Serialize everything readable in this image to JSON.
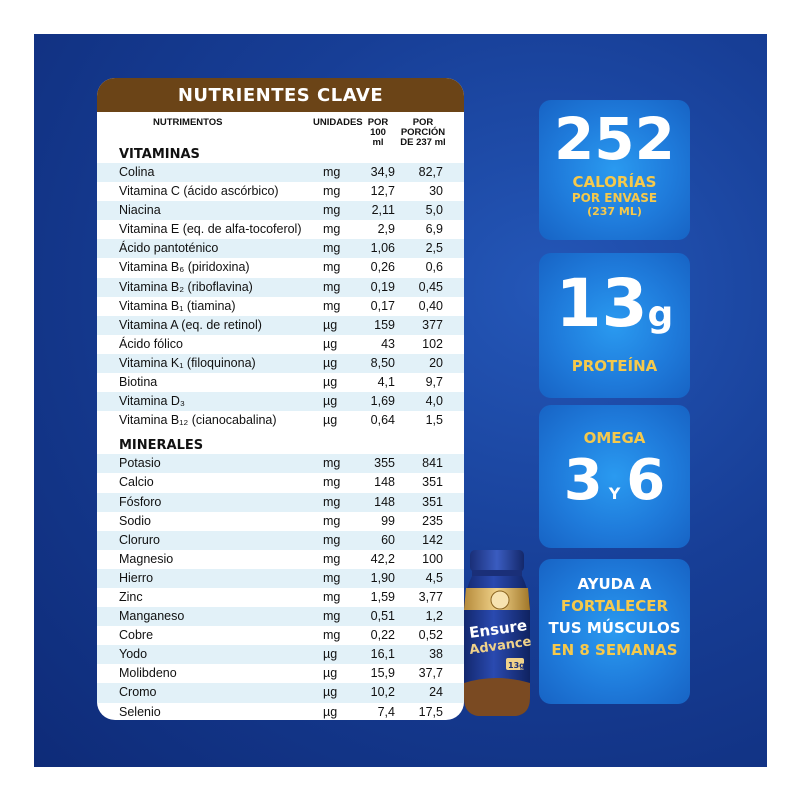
{
  "table": {
    "title": "NUTRIENTES CLAVE",
    "headers": {
      "nutrientes": "NUTRIMENTOS",
      "unidades": "UNIDADES",
      "por100_l1": "POR",
      "por100_l2": "100 ml",
      "porcion_l1": "POR PORCIÓN",
      "porcion_l2": "DE 237 ml"
    },
    "vitaminas_title": "VITAMINAS",
    "vitaminas": [
      {
        "name": "Colina",
        "unit": "mg",
        "v100": "34,9",
        "vporcion": "82,7"
      },
      {
        "name": "Vitamina C (ácido ascórbico)",
        "unit": "mg",
        "v100": "12,7",
        "vporcion": "30"
      },
      {
        "name": "Niacina",
        "unit": "mg",
        "v100": "2,11",
        "vporcion": "5,0"
      },
      {
        "name": "Vitamina E (eq. de alfa-tocoferol)",
        "unit": "mg",
        "v100": "2,9",
        "vporcion": "6,9"
      },
      {
        "name": "Ácido pantoténico",
        "unit": "mg",
        "v100": "1,06",
        "vporcion": "2,5"
      },
      {
        "name": "Vitamina B₆ (piridoxina)",
        "unit": "mg",
        "v100": "0,26",
        "vporcion": "0,6"
      },
      {
        "name": "Vitamina B₂ (riboflavina)",
        "unit": "mg",
        "v100": "0,19",
        "vporcion": "0,45"
      },
      {
        "name": "Vitamina B₁ (tiamina)",
        "unit": "mg",
        "v100": "0,17",
        "vporcion": "0,40"
      },
      {
        "name": "Vitamina A (eq. de retinol)",
        "unit": "µg",
        "v100": "159",
        "vporcion": "377"
      },
      {
        "name": "Ácido fólico",
        "unit": "µg",
        "v100": "43",
        "vporcion": "102"
      },
      {
        "name": "Vitamina K₁ (filoquinona)",
        "unit": "µg",
        "v100": "8,50",
        "vporcion": "20"
      },
      {
        "name": "Biotina",
        "unit": "µg",
        "v100": "4,1",
        "vporcion": "9,7"
      },
      {
        "name": "Vitamina D₃",
        "unit": "µg",
        "v100": "1,69",
        "vporcion": "4,0"
      },
      {
        "name": "Vitamina B₁₂ (cianocabalina)",
        "unit": "µg",
        "v100": "0,64",
        "vporcion": "1,5"
      }
    ],
    "minerales_title": "MINERALES",
    "minerales": [
      {
        "name": "Potasio",
        "unit": "mg",
        "v100": "355",
        "vporcion": "841"
      },
      {
        "name": "Calcio",
        "unit": "mg",
        "v100": "148",
        "vporcion": "351"
      },
      {
        "name": "Fósforo",
        "unit": "mg",
        "v100": "148",
        "vporcion": "351"
      },
      {
        "name": "Sodio",
        "unit": "mg",
        "v100": "99",
        "vporcion": "235"
      },
      {
        "name": "Cloruro",
        "unit": "mg",
        "v100": "60",
        "vporcion": "142"
      },
      {
        "name": "Magnesio",
        "unit": "mg",
        "v100": "42,2",
        "vporcion": "100"
      },
      {
        "name": "Hierro",
        "unit": "mg",
        "v100": "1,90",
        "vporcion": "4,5"
      },
      {
        "name": "Zinc",
        "unit": "mg",
        "v100": "1,59",
        "vporcion": "3,77"
      },
      {
        "name": "Manganeso",
        "unit": "mg",
        "v100": "0,51",
        "vporcion": "1,2"
      },
      {
        "name": "Cobre",
        "unit": "mg",
        "v100": "0,22",
        "vporcion": "0,52"
      },
      {
        "name": "Yodo",
        "unit": "µg",
        "v100": "16,1",
        "vporcion": "38"
      },
      {
        "name": "Molibdeno",
        "unit": "µg",
        "v100": "15,9",
        "vporcion": "37,7"
      },
      {
        "name": "Cromo",
        "unit": "µg",
        "v100": "10,2",
        "vporcion": "24"
      },
      {
        "name": "Selenio",
        "unit": "µg",
        "v100": "7,4",
        "vporcion": "17,5"
      }
    ]
  },
  "badges": {
    "calories": {
      "number": "252",
      "line1": "CALORÍAS",
      "line2": "POR ENVASE",
      "line3": "(237 ML)"
    },
    "protein": {
      "number": "13",
      "unit": "g",
      "label": "PROTEÍNA"
    },
    "omega": {
      "label": "OMEGA",
      "first": "3",
      "conj": "Y",
      "second": "6"
    },
    "muscle": {
      "line1": "AYUDA A",
      "line2": "FORTALECER",
      "line3": "TUS MÚSCULOS",
      "line4": "EN 8 SEMANAS"
    }
  },
  "product": {
    "brand": "Ensure",
    "variant": "Advance",
    "badge": "13g"
  },
  "colors": {
    "background_blue": "#173e96",
    "header_brown": "#6b4417",
    "row_shade": "#e2f1f8",
    "badge_blue": "#1f7bdb",
    "gold": "#f5c94c",
    "bottle_blue": "#1c3a8a"
  }
}
